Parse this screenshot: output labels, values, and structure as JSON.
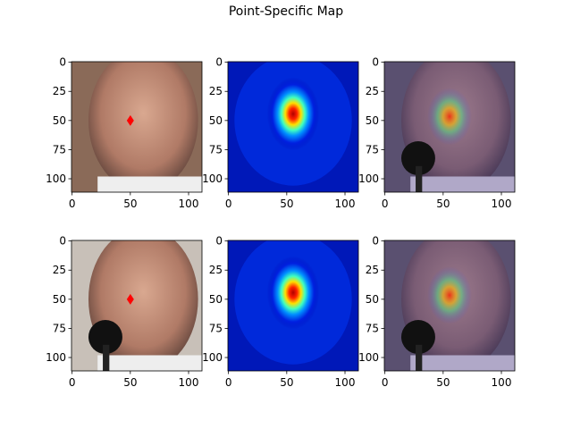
{
  "title": "Point-Specific Map",
  "chart_data": [
    {
      "type": "image",
      "xlim": [
        -0.5,
        111.5
      ],
      "ylim": [
        111.5,
        -0.5
      ],
      "xticks": [
        0,
        50,
        100
      ],
      "yticks": [
        0,
        25,
        50,
        75,
        100
      ],
      "points": {
        "x": [
          50
        ],
        "y": [
          50
        ]
      },
      "color": "#ff0000"
    },
    {
      "type": "image",
      "xlim": [
        -0.5,
        111.5
      ],
      "ylim": [
        111.5,
        -0.5
      ],
      "xticks": [
        0,
        50,
        100
      ],
      "yticks": [
        0,
        25,
        50,
        75,
        100
      ]
    },
    {
      "type": "image",
      "xlim": [
        -0.5,
        111.5
      ],
      "ylim": [
        111.5,
        -0.5
      ],
      "xticks": [
        0,
        50,
        100
      ],
      "yticks": [
        0,
        25,
        50,
        75,
        100
      ]
    },
    {
      "type": "image",
      "xlim": [
        -0.5,
        111.5
      ],
      "ylim": [
        111.5,
        -0.5
      ],
      "xticks": [
        0,
        50,
        100
      ],
      "yticks": [
        0,
        25,
        50,
        75,
        100
      ],
      "points": {
        "x": [
          50
        ],
        "y": [
          50
        ]
      },
      "color": "#ff0000"
    },
    {
      "type": "image",
      "xlim": [
        -0.5,
        111.5
      ],
      "ylim": [
        111.5,
        -0.5
      ],
      "xticks": [
        0,
        50,
        100
      ],
      "yticks": [
        0,
        25,
        50,
        75,
        100
      ]
    },
    {
      "type": "image",
      "xlim": [
        -0.5,
        111.5
      ],
      "ylim": [
        111.5,
        -0.5
      ],
      "xticks": [
        0,
        50,
        100
      ],
      "yticks": [
        0,
        25,
        50,
        75,
        100
      ]
    }
  ]
}
